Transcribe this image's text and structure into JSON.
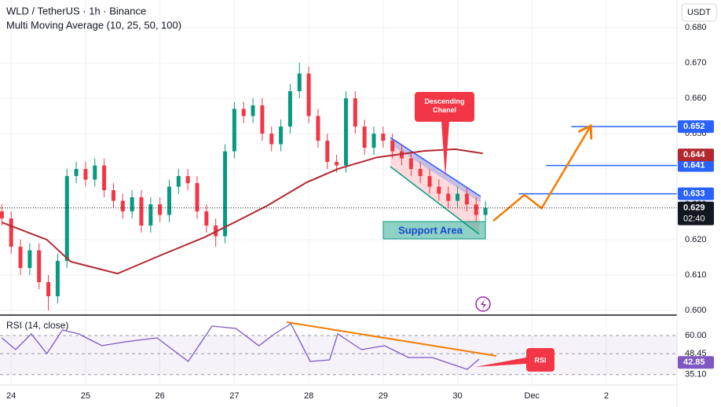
{
  "chart_data": [
    {
      "type": "candlestick",
      "title": "WLD / TetherUS · 1h · Binance",
      "subtitle": "Multi Moving Average (10, 25, 50, 100)",
      "quote": "USDT",
      "up_color": "#089981",
      "down_color": "#f23645",
      "xlim": [
        23.85,
        32.95
      ],
      "ylim": [
        0.5989,
        0.6878
      ],
      "xticks": [
        24,
        25,
        26,
        27,
        28,
        29,
        30,
        {
          "value": 31,
          "label": "Dec"
        },
        {
          "value": 32,
          "label": "2"
        }
      ],
      "yticks": [
        {
          "value": 0.6,
          "label": "0.600"
        },
        {
          "value": 0.61,
          "label": "0.610"
        },
        {
          "value": 0.62,
          "label": "0.620"
        },
        {
          "value": 0.63,
          "label": "0.630"
        },
        {
          "value": 0.64,
          "label": "0.640"
        },
        {
          "value": 0.65,
          "label": "0.650"
        },
        {
          "value": 0.66,
          "label": "0.660"
        },
        {
          "value": 0.67,
          "label": "0.670"
        },
        {
          "value": 0.68,
          "label": "0.680"
        }
      ],
      "grid": true,
      "x": [
        23.875,
        24,
        24.125,
        24.25,
        24.375,
        24.5,
        24.625,
        24.75,
        24.875,
        25,
        25.125,
        25.25,
        25.375,
        25.5,
        25.625,
        25.75,
        25.875,
        26,
        26.125,
        26.25,
        26.375,
        26.5,
        26.625,
        26.75,
        26.875,
        27,
        27.125,
        27.25,
        27.375,
        27.5,
        27.625,
        27.75,
        27.875,
        28,
        28.125,
        28.25,
        28.375,
        28.5,
        28.625,
        28.75,
        28.875,
        29,
        29.125,
        29.25,
        29.375,
        29.5,
        29.625,
        29.75,
        29.875,
        30,
        30.125,
        30.25,
        30.375
      ],
      "open": [
        0.628,
        0.626,
        0.618,
        0.612,
        0.617,
        0.608,
        0.604,
        0.614,
        0.638,
        0.64,
        0.637,
        0.641,
        0.634,
        0.631,
        0.628,
        0.632,
        0.624,
        0.63,
        0.627,
        0.635,
        0.638,
        0.636,
        0.628,
        0.624,
        0.621,
        0.645,
        0.657,
        0.655,
        0.658,
        0.65,
        0.647,
        0.652,
        0.662,
        0.667,
        0.655,
        0.648,
        0.642,
        0.641,
        0.66,
        0.652,
        0.646,
        0.65,
        0.648,
        0.645,
        0.643,
        0.64,
        0.638,
        0.635,
        0.633,
        0.631,
        0.633,
        0.63,
        0.627
      ],
      "high": [
        0.63,
        0.628,
        0.62,
        0.619,
        0.619,
        0.61,
        0.616,
        0.64,
        0.642,
        0.642,
        0.643,
        0.643,
        0.636,
        0.633,
        0.634,
        0.634,
        0.632,
        0.632,
        0.637,
        0.64,
        0.64,
        0.638,
        0.63,
        0.626,
        0.647,
        0.659,
        0.659,
        0.66,
        0.66,
        0.652,
        0.654,
        0.664,
        0.67,
        0.669,
        0.657,
        0.65,
        0.644,
        0.662,
        0.662,
        0.654,
        0.652,
        0.652,
        0.65,
        0.647,
        0.645,
        0.642,
        0.64,
        0.637,
        0.635,
        0.635,
        0.635,
        0.632,
        0.631
      ],
      "low": [
        0.624,
        0.616,
        0.61,
        0.61,
        0.606,
        0.6,
        0.602,
        0.612,
        0.636,
        0.635,
        0.635,
        0.632,
        0.629,
        0.626,
        0.626,
        0.622,
        0.622,
        0.625,
        0.625,
        0.633,
        0.634,
        0.626,
        0.622,
        0.618,
        0.619,
        0.643,
        0.653,
        0.653,
        0.648,
        0.645,
        0.645,
        0.65,
        0.66,
        0.653,
        0.646,
        0.64,
        0.639,
        0.639,
        0.65,
        0.644,
        0.644,
        0.646,
        0.643,
        0.641,
        0.638,
        0.636,
        0.633,
        0.631,
        0.629,
        0.629,
        0.628,
        0.625,
        0.625
      ],
      "close": [
        0.626,
        0.618,
        0.612,
        0.617,
        0.608,
        0.604,
        0.614,
        0.638,
        0.64,
        0.637,
        0.641,
        0.634,
        0.631,
        0.628,
        0.632,
        0.624,
        0.63,
        0.627,
        0.635,
        0.638,
        0.636,
        0.628,
        0.624,
        0.621,
        0.645,
        0.657,
        0.655,
        0.658,
        0.65,
        0.647,
        0.652,
        0.662,
        0.667,
        0.655,
        0.648,
        0.642,
        0.641,
        0.66,
        0.652,
        0.646,
        0.65,
        0.648,
        0.645,
        0.643,
        0.64,
        0.638,
        0.635,
        0.633,
        0.631,
        0.633,
        0.63,
        0.627,
        0.629
      ],
      "ma": {
        "color": "#b2282e",
        "x": [
          23.875,
          24.48,
          24.8,
          25.43,
          26.01,
          26.6,
          27.02,
          27.44,
          27.97,
          28.39,
          28.92,
          29.55,
          29.97,
          30.34
        ],
        "values": [
          0.6249,
          0.62,
          0.6138,
          0.6104,
          0.6156,
          0.6207,
          0.6251,
          0.6296,
          0.6362,
          0.64,
          0.6433,
          0.6451,
          0.6456,
          0.6444
        ],
        "last": 0.644
      },
      "levels": [
        {
          "value": 0.652,
          "x0": 31.53,
          "color": "#2962ff"
        },
        {
          "value": 0.641,
          "x0": 31.19,
          "color": "#2962ff"
        },
        {
          "value": 0.633,
          "x0": 30.82,
          "color": "#2962ff"
        }
      ],
      "projection": {
        "color": "#f57c00",
        "x": [
          30.48,
          30.9,
          31.13,
          31.79
        ],
        "values": [
          0.6253,
          0.6327,
          0.6289,
          0.6522
        ]
      },
      "last": {
        "value": 0.629,
        "countdown": "02:40"
      },
      "annotations": {
        "channel": "Descending Chanel",
        "support": "Support Area"
      }
    },
    {
      "type": "line",
      "title": "RSI (14, close)",
      "color": "#7e57c2",
      "ylim": [
        28.5,
        72.5
      ],
      "yticks": [
        {
          "value": 60,
          "label": "60.00"
        },
        48.45,
        {
          "value": 35.1,
          "label": "35.10"
        }
      ],
      "x": [
        23.875,
        24.06,
        24.27,
        24.48,
        24.69,
        24.91,
        25.22,
        25.54,
        25.96,
        26.38,
        26.7,
        27.02,
        27.33,
        27.54,
        27.76,
        28.02,
        28.28,
        28.39,
        28.71,
        29.02,
        29.34,
        29.66,
        29.97,
        30.13,
        30.29
      ],
      "values": [
        58.5,
        51,
        61,
        48.5,
        63.5,
        61,
        53.5,
        56,
        58.5,
        43.5,
        66,
        64.5,
        53.5,
        61,
        67.5,
        43.5,
        44.5,
        61,
        51,
        53.5,
        46,
        46,
        41,
        38.5,
        45
      ],
      "last": {
        "value": 42.85,
        "label": "42.85"
      },
      "annotation": "RSI"
    }
  ]
}
